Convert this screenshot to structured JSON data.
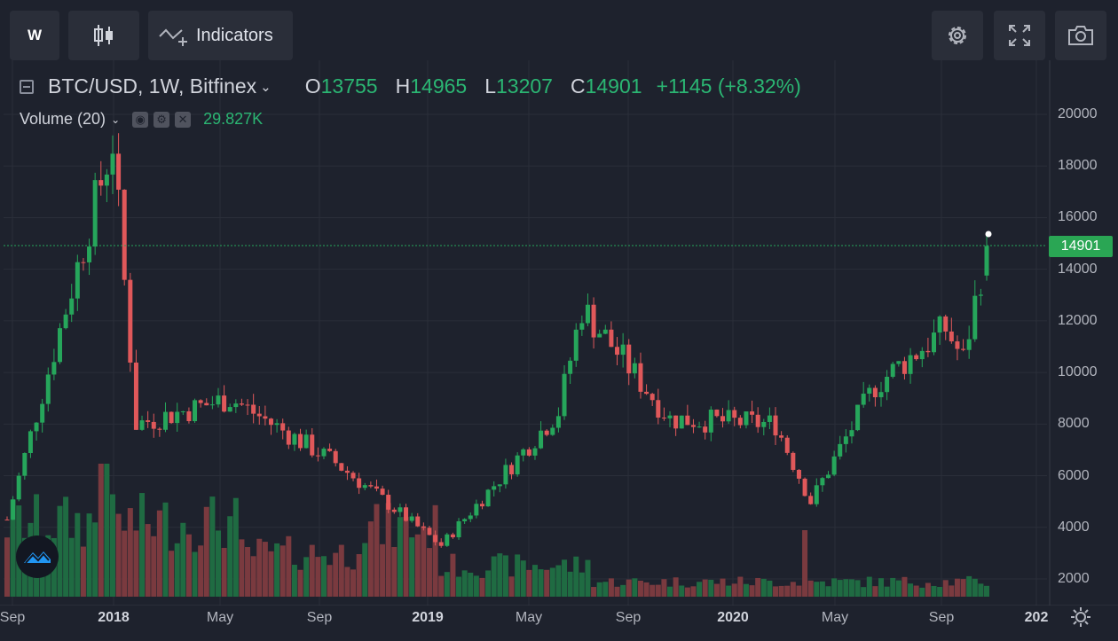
{
  "toolbar": {
    "interval_label": "W",
    "indicators_label": "Indicators"
  },
  "legend": {
    "symbol_label": "BTC/USD, 1W, Bitfinex",
    "open_key": "O",
    "open_value": "13755",
    "high_key": "H",
    "high_value": "14965",
    "low_key": "L",
    "low_value": "13207",
    "close_key": "C",
    "close_value": "14901",
    "change": "+1145 (+8.32%)"
  },
  "volume_legend": {
    "label": "Volume (20)",
    "value": "29.827K"
  },
  "last_price_label": "14901",
  "colors": {
    "background": "#1e222d",
    "up": "#26a65b",
    "down": "#e0585a",
    "up_volume": "#1f6b42",
    "down_volume": "#7a3a3f",
    "price_label_bg": "#2aa654"
  },
  "y_axis_ticks": [
    "20000",
    "18000",
    "16000",
    "14000",
    "12000",
    "10000",
    "8000",
    "6000",
    "4000",
    "2000"
  ],
  "x_axis_ticks": [
    {
      "label": "Sep",
      "year": false
    },
    {
      "label": "2018",
      "year": true
    },
    {
      "label": "May",
      "year": false
    },
    {
      "label": "Sep",
      "year": false
    },
    {
      "label": "2019",
      "year": true
    },
    {
      "label": "May",
      "year": false
    },
    {
      "label": "Sep",
      "year": false
    },
    {
      "label": "2020",
      "year": true
    },
    {
      "label": "May",
      "year": false
    },
    {
      "label": "Sep",
      "year": false
    },
    {
      "label": "202",
      "year": true
    }
  ],
  "chart_data": {
    "type": "candlestick",
    "symbol": "BTC/USD",
    "interval": "1W",
    "exchange": "Bitfinex",
    "ylim": [
      1200,
      21600
    ],
    "grid": true,
    "last_close": 14901,
    "key_points": [
      {
        "date": "2017-09",
        "close": 4300
      },
      {
        "date": "2017-12",
        "close": 19000
      },
      {
        "date": "2018-02",
        "close": 8000
      },
      {
        "date": "2018-05",
        "close": 9000
      },
      {
        "date": "2018-09",
        "close": 6500
      },
      {
        "date": "2018-12",
        "close": 3300
      },
      {
        "date": "2019-05",
        "close": 8500
      },
      {
        "date": "2019-06",
        "close": 12500
      },
      {
        "date": "2019-09",
        "close": 8200
      },
      {
        "date": "2020-01",
        "close": 8000
      },
      {
        "date": "2020-03",
        "close": 5000
      },
      {
        "date": "2020-05",
        "close": 9500
      },
      {
        "date": "2020-08",
        "close": 11700
      },
      {
        "date": "2020-09",
        "close": 10500
      },
      {
        "date": "2020-11",
        "close": 14901
      }
    ]
  }
}
